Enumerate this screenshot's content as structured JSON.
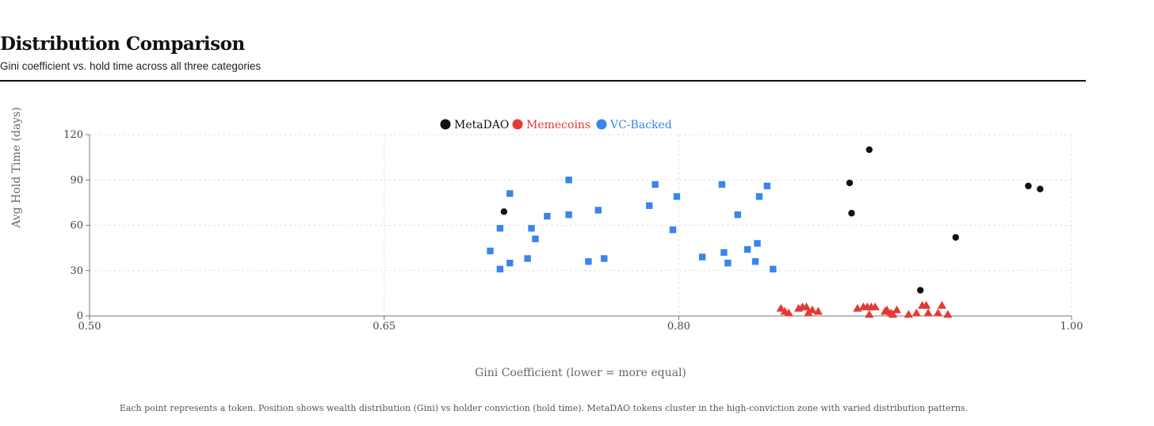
{
  "header": {
    "title": "Distribution Comparison",
    "subtitle": "Gini coefficient vs. hold time across all three categories"
  },
  "footnote": "Each point represents a token. Position shows wealth distribution (Gini) vs holder conviction (hold time). MetaDAO tokens cluster in the high-conviction zone with varied distribution patterns.",
  "chart_data": {
    "type": "scatter",
    "xlabel": "Gini Coefficient (lower = more equal)",
    "ylabel": "Avg Hold Time (days)",
    "xlim": [
      0.5,
      1.0
    ],
    "ylim": [
      0,
      120
    ],
    "xticks": [
      "0.50",
      "0.65",
      "0.80",
      "1.00"
    ],
    "xtick_values": [
      0.5,
      0.65,
      0.8,
      1.0
    ],
    "yticks": [
      "0",
      "30",
      "60",
      "90",
      "120"
    ],
    "ytick_values": [
      0,
      30,
      60,
      90,
      120
    ],
    "grid": true,
    "legend_position": "top-center",
    "series": [
      {
        "name": "MetaDAO",
        "color": "#111111",
        "marker": "circle",
        "points": [
          [
            0.711,
            69
          ],
          [
            0.887,
            88
          ],
          [
            0.888,
            68
          ],
          [
            0.897,
            110
          ],
          [
            0.923,
            17
          ],
          [
            0.941,
            52
          ],
          [
            0.978,
            86
          ],
          [
            0.984,
            84
          ]
        ]
      },
      {
        "name": "Memecoins",
        "color": "#e53935",
        "marker": "triangle",
        "points": [
          [
            0.852,
            5
          ],
          [
            0.854,
            3
          ],
          [
            0.856,
            2
          ],
          [
            0.861,
            5
          ],
          [
            0.863,
            6
          ],
          [
            0.865,
            6
          ],
          [
            0.866,
            2
          ],
          [
            0.868,
            4
          ],
          [
            0.871,
            3
          ],
          [
            0.891,
            5
          ],
          [
            0.894,
            6
          ],
          [
            0.896,
            6
          ],
          [
            0.897,
            1
          ],
          [
            0.898,
            6
          ],
          [
            0.9,
            6
          ],
          [
            0.905,
            3
          ],
          [
            0.906,
            4
          ],
          [
            0.908,
            2
          ],
          [
            0.909,
            1
          ],
          [
            0.911,
            4
          ],
          [
            0.917,
            1
          ],
          [
            0.921,
            2
          ],
          [
            0.924,
            7
          ],
          [
            0.926,
            7
          ],
          [
            0.927,
            2
          ],
          [
            0.932,
            2
          ],
          [
            0.934,
            7
          ],
          [
            0.937,
            1
          ]
        ]
      },
      {
        "name": "VC-Backed",
        "color": "#3a85ea",
        "marker": "square",
        "points": [
          [
            0.704,
            43
          ],
          [
            0.709,
            58
          ],
          [
            0.709,
            31
          ],
          [
            0.714,
            81
          ],
          [
            0.714,
            35
          ],
          [
            0.723,
            38
          ],
          [
            0.725,
            58
          ],
          [
            0.727,
            51
          ],
          [
            0.733,
            66
          ],
          [
            0.744,
            90
          ],
          [
            0.744,
            67
          ],
          [
            0.754,
            36
          ],
          [
            0.759,
            70
          ],
          [
            0.762,
            38
          ],
          [
            0.785,
            73
          ],
          [
            0.788,
            87
          ],
          [
            0.797,
            57
          ],
          [
            0.799,
            79
          ],
          [
            0.812,
            39
          ],
          [
            0.822,
            87
          ],
          [
            0.823,
            42
          ],
          [
            0.825,
            35
          ],
          [
            0.83,
            67
          ],
          [
            0.835,
            44
          ],
          [
            0.839,
            36
          ],
          [
            0.84,
            48
          ],
          [
            0.841,
            79
          ],
          [
            0.845,
            86
          ],
          [
            0.848,
            31
          ]
        ]
      }
    ]
  }
}
